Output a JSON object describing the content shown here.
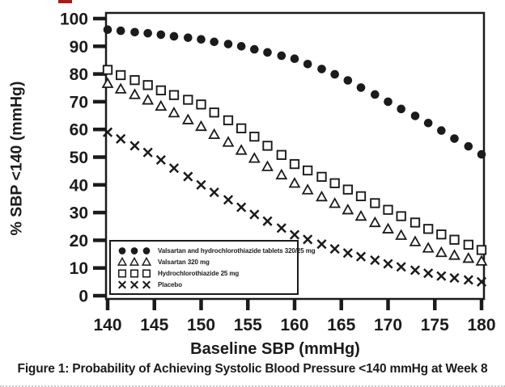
{
  "figure": {
    "caption": "Figure 1: Probability of Achieving Systolic Blood Pressure <140 mmHg at Week 8"
  },
  "chart_data": {
    "type": "scatter",
    "title": "",
    "xlabel": "Baseline SBP (mmHg)",
    "ylabel": "% SBP <140 (mmHg)",
    "xlim": [
      140,
      180
    ],
    "ylim": [
      0,
      100
    ],
    "grid": false,
    "legend_position": "lower-left-inside",
    "x_ticks": [
      140,
      145,
      150,
      155,
      160,
      165,
      170,
      175,
      180
    ],
    "y_ticks": [
      0,
      10,
      20,
      30,
      40,
      50,
      60,
      70,
      80,
      90,
      100
    ],
    "x": [
      140,
      141.4,
      142.9,
      144.3,
      145.7,
      147.1,
      148.6,
      150,
      151.4,
      152.9,
      154.3,
      155.7,
      157.1,
      158.6,
      160,
      161.4,
      162.9,
      164.3,
      165.7,
      167.1,
      168.6,
      170,
      171.4,
      172.9,
      174.3,
      175.7,
      177.1,
      178.6,
      180
    ],
    "series": [
      {
        "name": "Valsartan and hydrochlorothiazide tablets 320/25 mg",
        "marker": "filled-circle",
        "values": [
          96,
          95.6,
          95.1,
          94.7,
          94.2,
          93.6,
          93.1,
          92.5,
          91.6,
          90.8,
          90,
          88.9,
          87.8,
          86.6,
          85.5,
          83.6,
          81.8,
          79.9,
          77.7,
          75.1,
          72.6,
          70,
          67.4,
          64.9,
          62.3,
          59.6,
          56.7,
          53.9,
          51
        ]
      },
      {
        "name": "Valsartan 320 mg",
        "marker": "open-triangle",
        "values": [
          76.5,
          74.5,
          72.5,
          70.5,
          68.3,
          65.9,
          63.4,
          61,
          58.1,
          55.3,
          52.4,
          49.5,
          46.5,
          43.5,
          40.5,
          38.1,
          35.6,
          33.2,
          30.9,
          28.6,
          26.3,
          24,
          21.7,
          19.4,
          17.1,
          15.5,
          14.5,
          13.4,
          12.4
        ]
      },
      {
        "name": "Hydrochlorothiazide 25 mg",
        "marker": "open-square",
        "values": [
          81.5,
          79.6,
          77.8,
          76,
          74.1,
          72.4,
          70.7,
          69,
          66.1,
          63.3,
          60.4,
          57.4,
          54.1,
          50.8,
          47.5,
          45.2,
          42.9,
          40.6,
          38.3,
          35.9,
          33.4,
          31,
          28.7,
          26.4,
          24.1,
          22.1,
          20.2,
          18.4,
          16.5
        ]
      },
      {
        "name": "Placebo",
        "marker": "cross",
        "values": [
          59,
          56.6,
          54.1,
          51.7,
          49,
          46,
          43,
          40,
          37.3,
          34.6,
          31.9,
          29.3,
          26.9,
          24.4,
          22,
          20.3,
          18.6,
          16.9,
          15.4,
          14.1,
          12.8,
          11.5,
          10.4,
          9.2,
          8.1,
          7.1,
          6.4,
          5.7,
          5
        ]
      }
    ]
  }
}
